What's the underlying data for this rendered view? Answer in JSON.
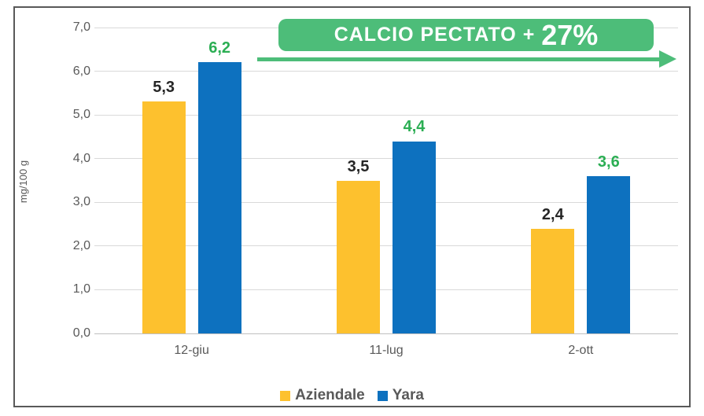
{
  "chart_data": {
    "type": "bar",
    "categories": [
      "12-giu",
      "11-lug",
      "2-ott"
    ],
    "series": [
      {
        "name": "Aziendale",
        "color": "#fdc12e",
        "values": [
          5.3,
          3.5,
          2.4
        ],
        "value_labels": [
          "5,3",
          "3,5",
          "2,4"
        ],
        "label_color": "#262626"
      },
      {
        "name": "Yara",
        "color": "#0d71bf",
        "values": [
          6.2,
          4.4,
          3.6
        ],
        "value_labels": [
          "6,2",
          "4,4",
          "3,6"
        ],
        "label_color": "#2bae53"
      }
    ],
    "title": "",
    "xlabel": "",
    "ylabel": "mg/100 g",
    "ylim": [
      0,
      7
    ],
    "ytick_step": 1,
    "ytick_labels": [
      "0,0",
      "1,0",
      "2,0",
      "3,0",
      "4,0",
      "5,0",
      "6,0",
      "7,0"
    ],
    "grid": true,
    "legend_position": "bottom"
  },
  "annotation": {
    "banner_text": "CALCIO PECTATO + ",
    "banner_percent": "27%",
    "banner_color": "#4dbd79",
    "arrow_color": "#4dbd79"
  },
  "frame": {
    "border_color": "#595959",
    "gridline_color": "#d9d9d9"
  }
}
